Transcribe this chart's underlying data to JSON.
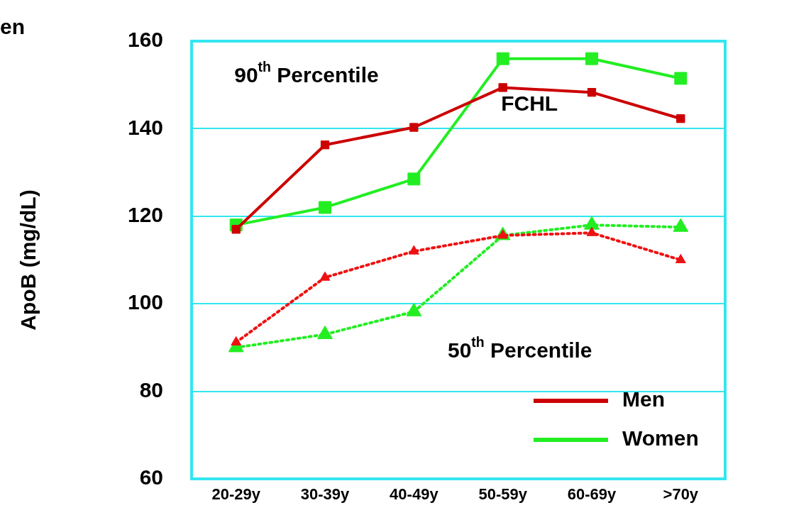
{
  "chart_data": {
    "type": "line",
    "ylabel": "ApoB (mg/dL)",
    "categories": [
      "20-29y",
      "30-39y",
      "40-49y",
      "50-59y",
      "60-69y",
      ">70y"
    ],
    "series": [
      {
        "name": "Men",
        "color": "#cc0000",
        "values": [
          117,
          136.3,
          140.3,
          149.4,
          148.3,
          142.3
        ],
        "marker": "square",
        "line_style": "solid"
      },
      {
        "name": "Women",
        "color": "#22ee22",
        "values": [
          118,
          122,
          128.5,
          156,
          156,
          151.5
        ],
        "marker": "square",
        "line_style": "solid"
      },
      {
        "color": "#ee1111",
        "values": [
          91.2,
          106,
          112,
          115.6,
          116.2,
          110
        ],
        "marker": "triangle",
        "line_style": "dotted"
      },
      {
        "color": "#22ee22",
        "values": [
          90,
          93,
          98.2,
          115.6,
          118,
          117.5
        ],
        "marker": "triangle",
        "line_style": "dotted"
      }
    ],
    "ylim": [
      60,
      160
    ],
    "yticks": [
      60,
      80,
      100,
      120,
      140,
      160
    ],
    "grid": "y",
    "legend": "bottom right",
    "annotations": [
      "en",
      "90$^{th}$ Percentile",
      "FCHL",
      "50$^{th}$ Percentile"
    ]
  }
}
